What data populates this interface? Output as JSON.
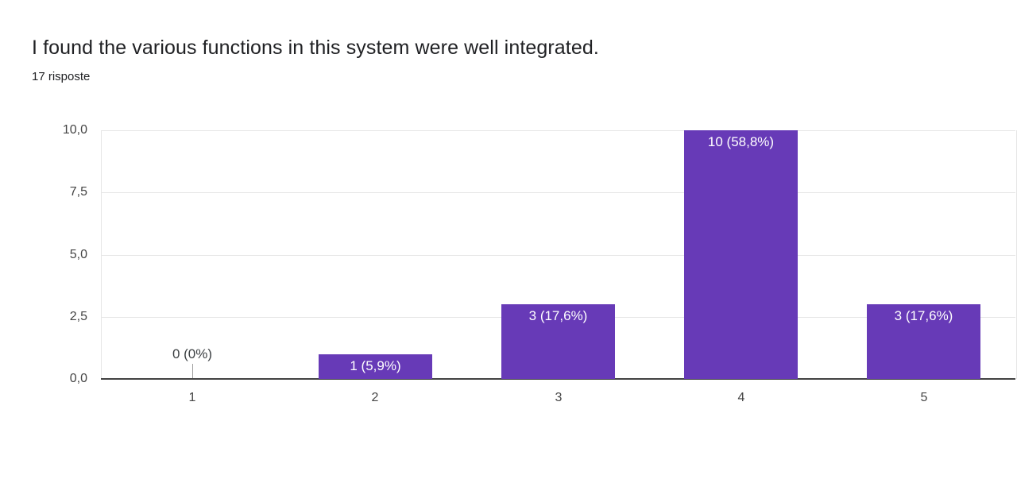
{
  "header": {
    "title": "I found the various functions in this system were well integrated.",
    "subtitle": "17 risposte"
  },
  "chart_data": {
    "type": "bar",
    "title": "I found the various functions in this system were well integrated.",
    "responses_label": "17 risposte",
    "categories": [
      "1",
      "2",
      "3",
      "4",
      "5"
    ],
    "values": [
      0,
      1,
      3,
      10,
      3
    ],
    "bar_labels": [
      "0 (0%)",
      "1 (5,9%)",
      "3 (17,6%)",
      "10 (58,8%)",
      "3 (17,6%)"
    ],
    "xlabel": "",
    "ylabel": "",
    "y_ticks": [
      "0,0",
      "2,5",
      "5,0",
      "7,5",
      "10,0"
    ],
    "y_tick_values": [
      0,
      2.5,
      5,
      7.5,
      10
    ],
    "ylim": [
      0,
      10
    ],
    "grid": true,
    "legend": "none",
    "colors": {
      "bar": "#673ab7",
      "bar_label_text": "#ffffff",
      "zero_label_text": "#3c4043",
      "grid": "#e6e6e6",
      "axis": "#424242",
      "tick_text": "#444444",
      "title_text": "#202124"
    }
  }
}
